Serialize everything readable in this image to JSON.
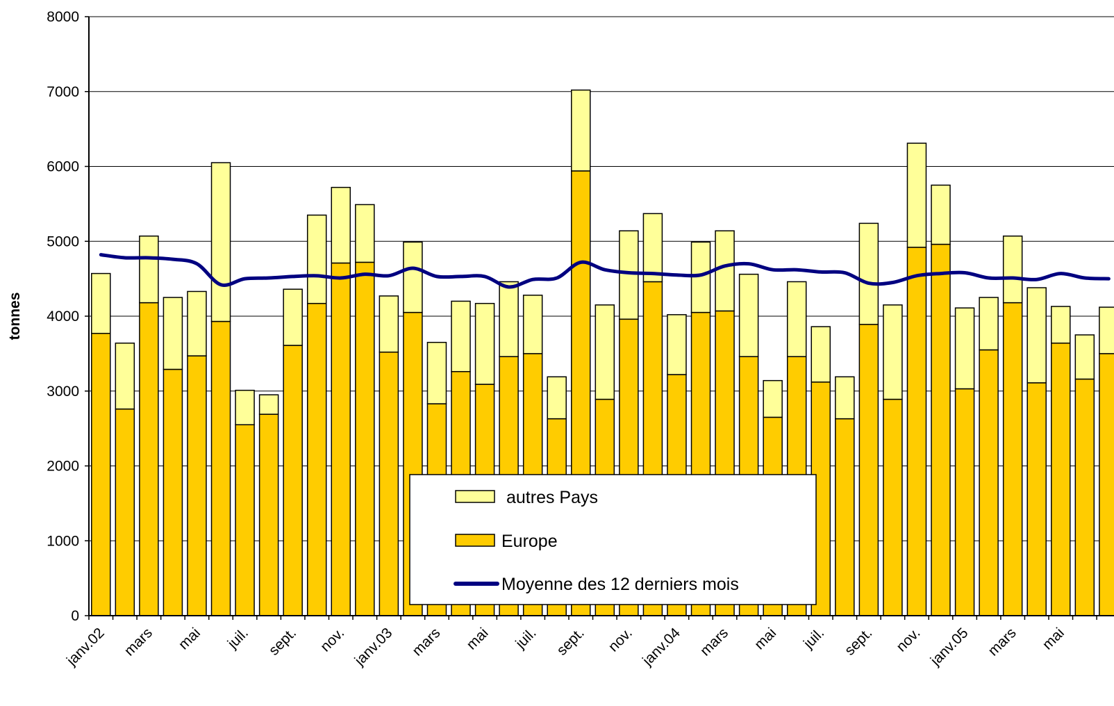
{
  "chart_data": {
    "type": "bar",
    "stacked": true,
    "xlabel": "",
    "ylabel": "tonnes",
    "ylim": [
      0,
      8000
    ],
    "yticks": [
      0,
      1000,
      2000,
      3000,
      4000,
      5000,
      6000,
      7000,
      8000
    ],
    "grid": true,
    "legend_position": "bottom-center",
    "categories": [
      "janv.02",
      "févr.",
      "mars",
      "avr.",
      "mai",
      "juin",
      "juil.",
      "août",
      "sept.",
      "oct.",
      "nov.",
      "déc.",
      "janv.03",
      "févr.",
      "mars",
      "avr.",
      "mai",
      "juin",
      "juil.",
      "août",
      "sept.",
      "oct.",
      "nov.",
      "déc.",
      "janv.04",
      "févr.",
      "mars",
      "avr.",
      "mai",
      "juin",
      "juil.",
      "août",
      "sept.",
      "oct.",
      "nov.",
      "déc.",
      "janv.05",
      "févr.",
      "mars",
      "avr.",
      "mai",
      "juin",
      "juil."
    ],
    "xtick_labels": [
      {
        "index": 0,
        "label": "janv.02"
      },
      {
        "index": 2,
        "label": "mars"
      },
      {
        "index": 4,
        "label": "mai"
      },
      {
        "index": 6,
        "label": "juil."
      },
      {
        "index": 8,
        "label": "sept."
      },
      {
        "index": 10,
        "label": "nov."
      },
      {
        "index": 12,
        "label": "janv.03"
      },
      {
        "index": 14,
        "label": "mars"
      },
      {
        "index": 16,
        "label": "mai"
      },
      {
        "index": 18,
        "label": "juil."
      },
      {
        "index": 20,
        "label": "sept."
      },
      {
        "index": 22,
        "label": "nov."
      },
      {
        "index": 24,
        "label": "janv.04"
      },
      {
        "index": 26,
        "label": "mars"
      },
      {
        "index": 28,
        "label": "mai"
      },
      {
        "index": 30,
        "label": "juil."
      },
      {
        "index": 32,
        "label": "sept."
      },
      {
        "index": 34,
        "label": "nov."
      },
      {
        "index": 36,
        "label": "janv.05"
      },
      {
        "index": 38,
        "label": "mars"
      },
      {
        "index": 40,
        "label": "mai"
      }
    ],
    "series": [
      {
        "name": "Europe",
        "kind": "bar",
        "color": "#FFCC00",
        "values": [
          3770,
          2760,
          4180,
          3290,
          3470,
          3930,
          2550,
          2690,
          3610,
          4170,
          4710,
          4720,
          3520,
          4050,
          2830,
          3260,
          3090,
          3460,
          3500,
          2630,
          5940,
          2890,
          3960,
          4460,
          3220,
          4050,
          4070,
          3460,
          2650,
          3460,
          3120,
          2630,
          3890,
          2890,
          4920,
          4960,
          3030,
          3550,
          4180,
          3110,
          3640,
          3160,
          3500
        ]
      },
      {
        "name": "autres Pays",
        "kind": "bar",
        "color": "#FFFF99",
        "values": [
          800,
          880,
          890,
          960,
          860,
          2120,
          460,
          260,
          750,
          1180,
          1010,
          770,
          750,
          940,
          820,
          940,
          1080,
          1000,
          780,
          560,
          1080,
          1260,
          1180,
          910,
          800,
          940,
          1070,
          1100,
          490,
          1000,
          740,
          560,
          1350,
          1260,
          1390,
          790,
          1080,
          700,
          890,
          1270,
          490,
          590,
          620
        ]
      },
      {
        "name": "Moyenne des 12 derniers mois",
        "kind": "line",
        "color": "#000080",
        "values": [
          4820,
          4780,
          4780,
          4760,
          4700,
          4420,
          4500,
          4510,
          4530,
          4540,
          4510,
          4560,
          4540,
          4640,
          4530,
          4530,
          4530,
          4390,
          4490,
          4510,
          4720,
          4620,
          4580,
          4570,
          4550,
          4550,
          4670,
          4700,
          4620,
          4620,
          4590,
          4580,
          4440,
          4450,
          4540,
          4570,
          4580,
          4510,
          4510,
          4490,
          4570,
          4510,
          4500
        ]
      }
    ]
  },
  "legend": {
    "items": [
      {
        "label": "autres Pays",
        "color": "#FFFF99",
        "symbol": "box"
      },
      {
        "label": "Europe",
        "color": "#FFCC00",
        "symbol": "box"
      },
      {
        "label": "Moyenne des 12 derniers mois",
        "color": "#000080",
        "symbol": "line"
      }
    ]
  }
}
